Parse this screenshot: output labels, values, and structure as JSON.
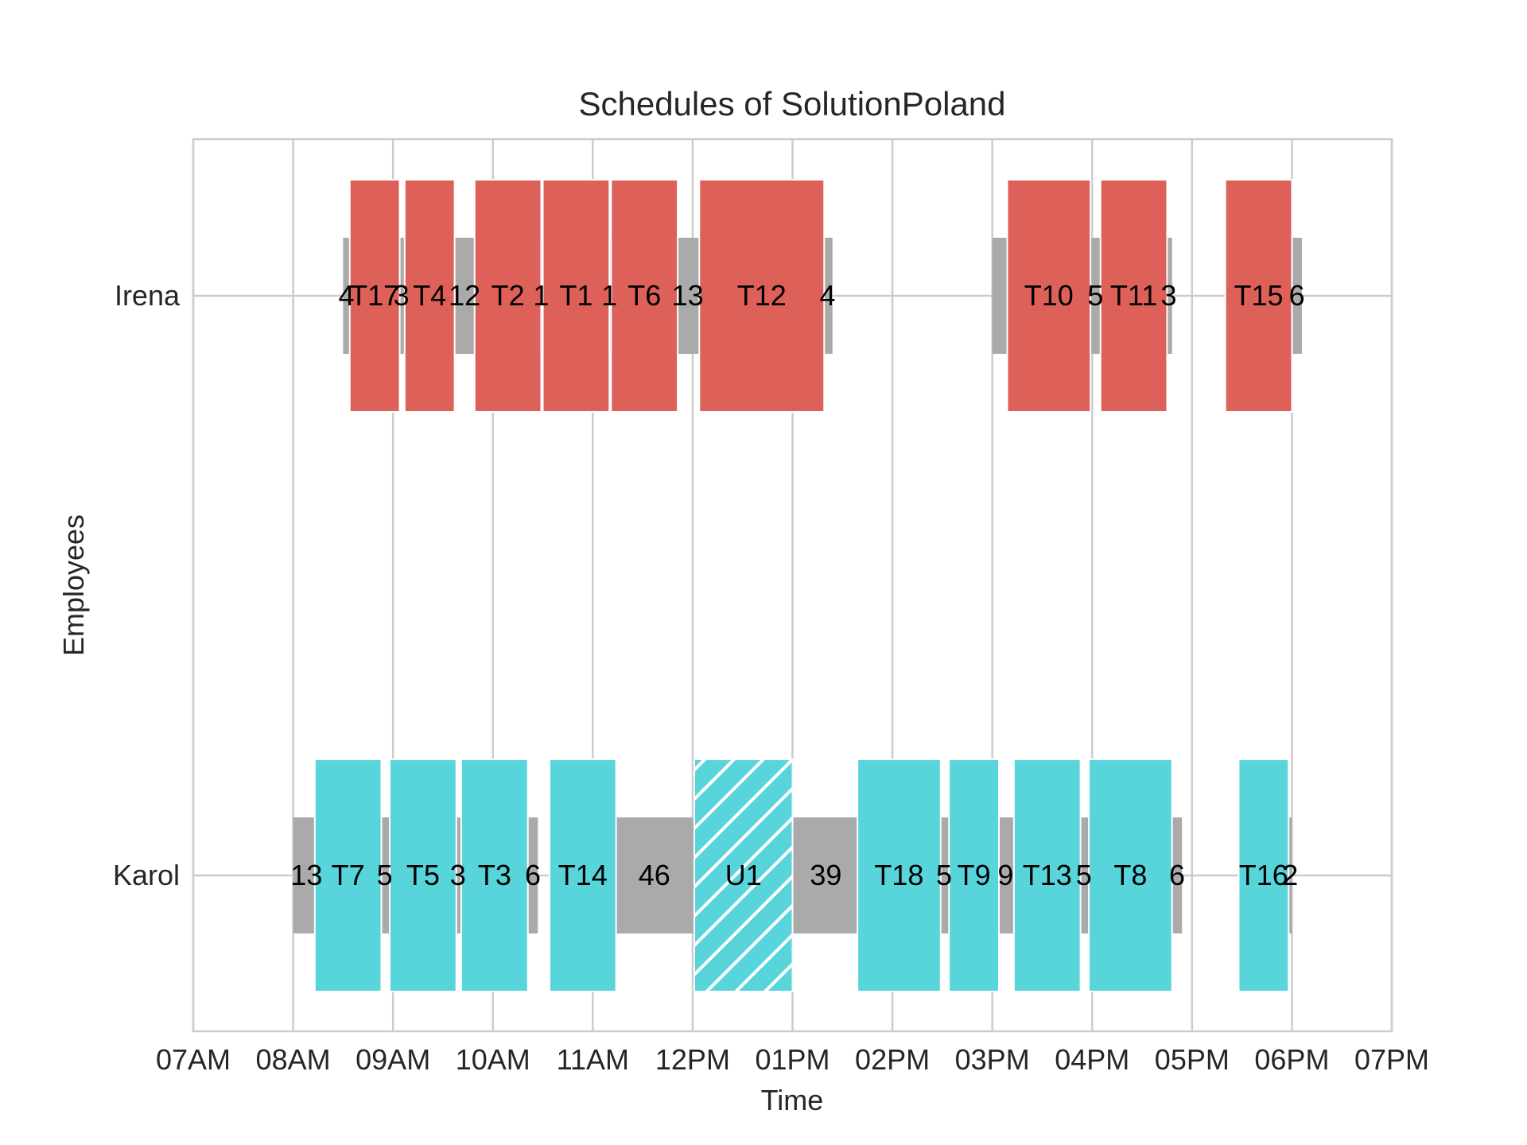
{
  "chart_data": {
    "type": "gantt",
    "title": "Schedules of SolutionPoland",
    "xlabel": "Time",
    "ylabel": "Employees",
    "xlim": [
      "07:00",
      "19:00"
    ],
    "xticks": [
      "07AM",
      "08AM",
      "09AM",
      "10AM",
      "11AM",
      "12PM",
      "01PM",
      "02PM",
      "03PM",
      "04PM",
      "05PM",
      "06PM",
      "07PM"
    ],
    "grid": true,
    "employees": [
      {
        "name": "Irena",
        "color": "#dd6059",
        "shifts": [
          {
            "start": "08:30",
            "end": "13:24"
          },
          {
            "start": "15:00",
            "end": "16:48"
          },
          {
            "start": "17:30",
            "end": "18:06"
          }
        ],
        "tasks": [
          {
            "label": "T17",
            "start": "08:34",
            "end": "09:04"
          },
          {
            "label": "T4",
            "start": "09:07",
            "end": "09:37"
          },
          {
            "label": "T2",
            "start": "09:49",
            "end": "10:29"
          },
          {
            "label": "T1",
            "start": "10:30",
            "end": "11:10"
          },
          {
            "label": "T6",
            "start": "11:11",
            "end": "11:51"
          },
          {
            "label": "T12",
            "start": "12:04",
            "end": "13:19"
          },
          {
            "label": "T10",
            "start": "15:09",
            "end": "15:59"
          },
          {
            "label": "T11",
            "start": "16:05",
            "end": "16:45"
          },
          {
            "label": "T15",
            "start": "17:20",
            "end": "18:00"
          }
        ],
        "gaps": [
          {
            "label": "4",
            "x": "08:32"
          },
          {
            "label": "3",
            "x": "09:05"
          },
          {
            "label": "12",
            "x": "09:43"
          },
          {
            "label": "1",
            "x": "10:29"
          },
          {
            "label": "1",
            "x": "11:10"
          },
          {
            "label": "13",
            "x": "11:57"
          },
          {
            "label": "4",
            "x": "13:21"
          },
          {
            "label": "5",
            "x": "16:02"
          },
          {
            "label": "3",
            "x": "16:46"
          },
          {
            "label": "6",
            "x": "18:03"
          }
        ]
      },
      {
        "name": "Karol",
        "color": "#58d4db",
        "shifts": [
          {
            "start": "08:00",
            "end": "10:27"
          },
          {
            "start": "11:14",
            "end": "16:54"
          },
          {
            "start": "17:46",
            "end": "18:00"
          }
        ],
        "tasks": [
          {
            "label": "T7",
            "start": "08:13",
            "end": "08:53"
          },
          {
            "label": "T5",
            "start": "08:58",
            "end": "09:38"
          },
          {
            "label": "T3",
            "start": "09:41",
            "end": "10:21"
          },
          {
            "label": "T14",
            "start": "10:34",
            "end": "11:14"
          },
          {
            "label": "U1",
            "start": "12:01",
            "end": "13:00",
            "unavailable": true
          },
          {
            "label": "T18",
            "start": "13:39",
            "end": "14:29"
          },
          {
            "label": "T9",
            "start": "14:34",
            "end": "15:04"
          },
          {
            "label": "T13",
            "start": "15:13",
            "end": "15:53"
          },
          {
            "label": "T8",
            "start": "15:58",
            "end": "16:48"
          },
          {
            "label": "T16",
            "start": "17:28",
            "end": "17:58"
          }
        ],
        "gaps": [
          {
            "label": "13",
            "x": "08:08"
          },
          {
            "label": "5",
            "x": "08:55"
          },
          {
            "label": "3",
            "x": "09:39"
          },
          {
            "label": "6",
            "x": "10:24"
          },
          {
            "label": "46",
            "x": "11:37"
          },
          {
            "label": "39",
            "x": "13:20"
          },
          {
            "label": "5",
            "x": "14:31"
          },
          {
            "label": "9",
            "x": "15:08"
          },
          {
            "label": "5",
            "x": "15:55"
          },
          {
            "label": "6",
            "x": "16:51"
          },
          {
            "label": "2",
            "x": "17:59"
          }
        ]
      }
    ]
  }
}
